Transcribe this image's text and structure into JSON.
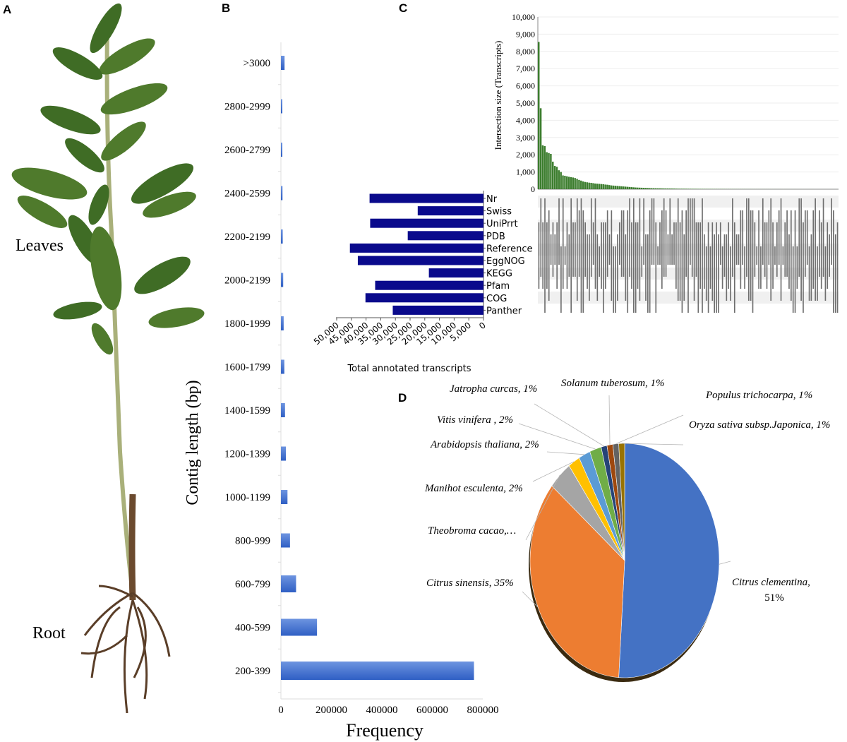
{
  "panels": {
    "a": "A",
    "b": "B",
    "c": "C",
    "d": "D"
  },
  "panel_a": {
    "leaves_label": "Leaves",
    "root_label": "Root"
  },
  "chart_data": [
    {
      "id": "B",
      "type": "bar",
      "orientation": "horizontal",
      "title": "",
      "xlabel": "Frequency",
      "ylabel": "Contig  length (bp)",
      "xlim": [
        0,
        800000
      ],
      "xticks": [
        "0",
        "200000",
        "400000",
        "600000",
        "800000"
      ],
      "xtick_values": [
        0,
        200000,
        400000,
        600000,
        800000
      ],
      "categories": [
        ">3000",
        "2800-2999",
        "2600-2799",
        "2400-2599",
        "2200-2199",
        "2000-2199",
        "1800-1999",
        "1600-1799",
        "1400-1599",
        "1200-1399",
        "1000-1199",
        "800-999",
        "600-799",
        "400-599",
        "200-399"
      ],
      "values": [
        14400,
        4500,
        4500,
        6300,
        7200,
        9000,
        10800,
        13500,
        16200,
        19800,
        26000,
        36000,
        60000,
        143000,
        765000
      ],
      "color": "#3f6fd0"
    },
    {
      "id": "C-sets",
      "type": "bar",
      "orientation": "horizontal-reversed",
      "xlabel": "Total annotated transcripts",
      "xlim": [
        0,
        50000
      ],
      "xticks": [
        "50,000",
        "45,000",
        "40,000",
        "35,000",
        "30,000",
        "25,000",
        "20,000",
        "15,000",
        "10,000",
        "5,000",
        "0"
      ],
      "xtick_values": [
        50000,
        45000,
        40000,
        35000,
        30000,
        25000,
        20000,
        15000,
        10000,
        5000,
        0
      ],
      "categories": [
        "Nr",
        "Swiss",
        "UniPrrt",
        "PDB",
        "Reference",
        "EggNOG",
        "KEGG",
        "Pfam",
        "COG",
        "Panther"
      ],
      "values": [
        38800,
        22400,
        38600,
        25800,
        45500,
        42800,
        18600,
        36900,
        40200,
        30900
      ],
      "color": "#0a0a8c"
    },
    {
      "id": "C-intersections",
      "type": "bar",
      "ylabel": "Intersection size (Transcripts)",
      "ylim": [
        0,
        10000
      ],
      "yticks": [
        "0",
        "1,000",
        "2,000",
        "3,000",
        "4,000",
        "5,000",
        "6,000",
        "7,000",
        "8,000",
        "9,000",
        "10,000"
      ],
      "ytick_values": [
        0,
        1000,
        2000,
        3000,
        4000,
        5000,
        6000,
        7000,
        8000,
        9000,
        10000
      ],
      "grid": true,
      "color": "#3c7d2e",
      "matrix_color": "#6e6e6e",
      "values": [
        8550,
        4700,
        2550,
        2500,
        2150,
        2100,
        2050,
        1600,
        1350,
        1300,
        1100,
        1000,
        800,
        780,
        750,
        720,
        700,
        680,
        650,
        600,
        540,
        500,
        450,
        420,
        400,
        380,
        370,
        350,
        330,
        320,
        310,
        300,
        290,
        270,
        260,
        240,
        220,
        210,
        200,
        190,
        180,
        170,
        160,
        150,
        140,
        130,
        120,
        110,
        100,
        95,
        90,
        85,
        80,
        75,
        70,
        66,
        62,
        58,
        55,
        52,
        50,
        48,
        46,
        44,
        42,
        40,
        38,
        36,
        34,
        32,
        30,
        29,
        28,
        27,
        26,
        25,
        24,
        23,
        22,
        21,
        20,
        19,
        18,
        17,
        16,
        15,
        15,
        14,
        14,
        13,
        13,
        12,
        12,
        11,
        11,
        10,
        10,
        9,
        9,
        9,
        8,
        8,
        8,
        7,
        7,
        7,
        6,
        6,
        6,
        6,
        5,
        5,
        5,
        5,
        5,
        4,
        4,
        4,
        4,
        4,
        4,
        3,
        3,
        3,
        3,
        3,
        3,
        3,
        2,
        2,
        2,
        2,
        2,
        2,
        2,
        2,
        2,
        1,
        1,
        1,
        1,
        1,
        1,
        1,
        1,
        1,
        1,
        1,
        1
      ]
    },
    {
      "id": "D",
      "type": "pie",
      "slices": [
        {
          "label": "Citrus clementina,",
          "pct_label": "51%",
          "value": 51,
          "color": "#4472c4"
        },
        {
          "label": "Citrus sinensis, 35%",
          "value": 35,
          "color": "#ed7d31"
        },
        {
          "label": "Theobroma cacao,…",
          "value": 4,
          "color": "#a5a5a5"
        },
        {
          "label": "Manihot esculenta, 2%",
          "value": 2,
          "color": "#ffc000"
        },
        {
          "label": "Arabidopsis thaliana, 2%",
          "value": 2,
          "color": "#5b9bd5"
        },
        {
          "label": "Vitis vinifera , 2%",
          "value": 2,
          "color": "#70ad47"
        },
        {
          "label": "Jatropha curcas, 1%",
          "value": 1,
          "color": "#264478"
        },
        {
          "label": "Solanum tuberosum, 1%",
          "value": 1,
          "color": "#9e480e"
        },
        {
          "label": "Populus trichocarpa, 1%",
          "value": 1,
          "color": "#636363"
        },
        {
          "label": "Oryza sativa subsp.Japonica, 1%",
          "value": 1,
          "color": "#997300"
        }
      ]
    }
  ]
}
